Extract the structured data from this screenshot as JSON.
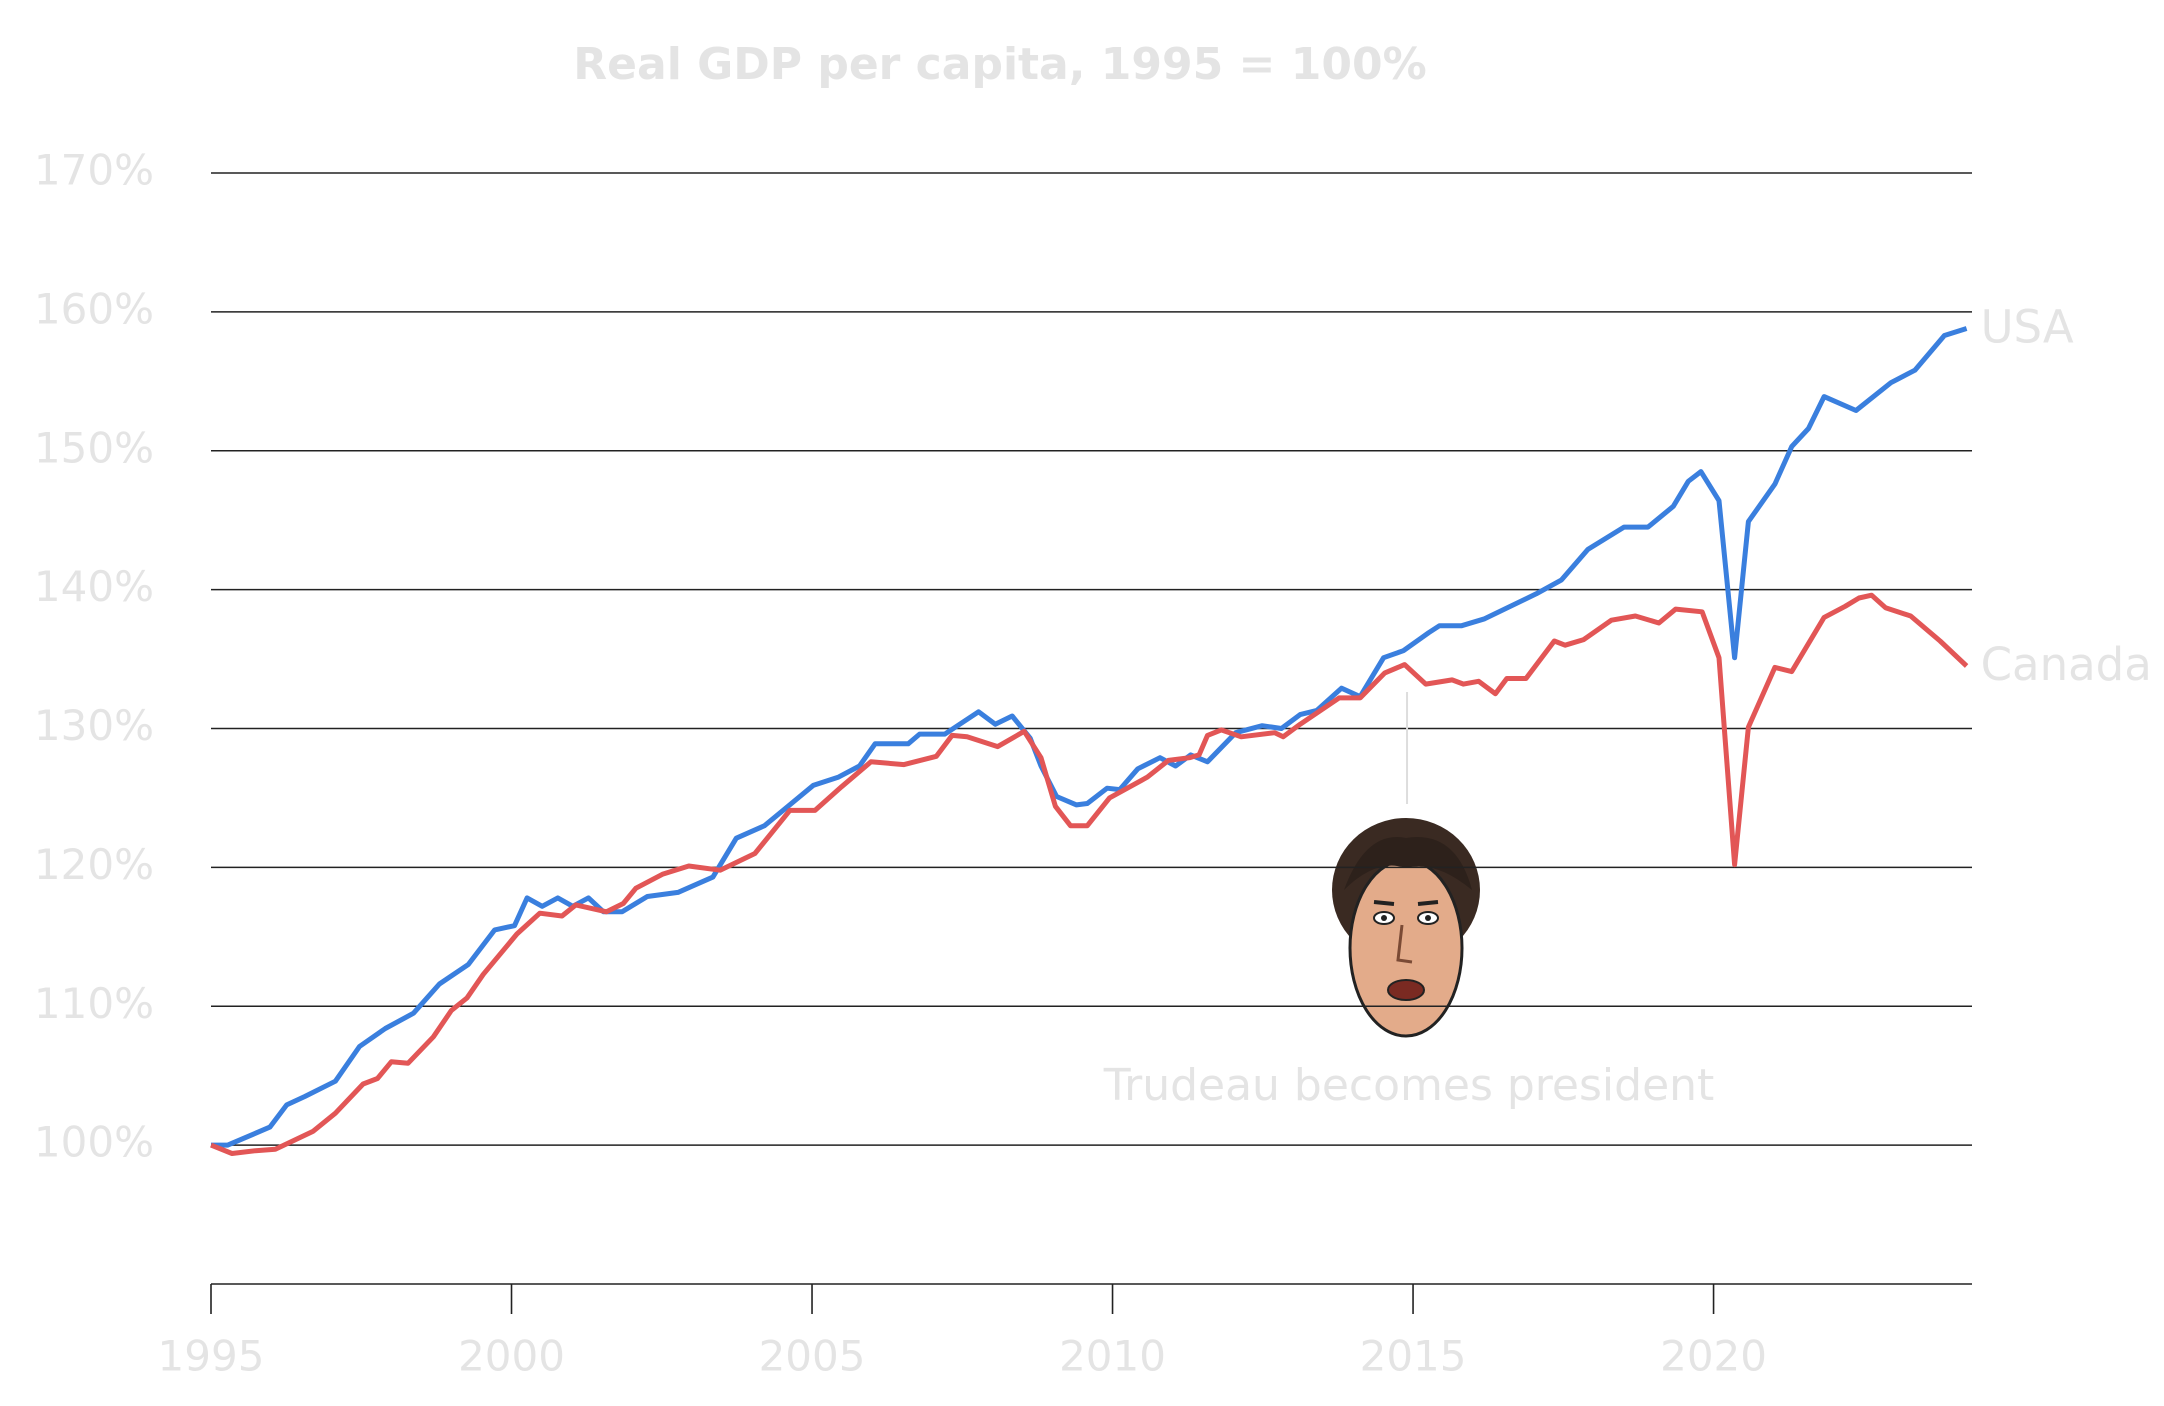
{
  "chart_data": {
    "type": "line",
    "title": "Real GDP per capita, 1995 = 100%",
    "xlim": [
      1995,
      2024.3
    ],
    "xticks": [
      1995,
      2000,
      2005,
      2010,
      2015,
      2020
    ],
    "ylim": [
      90,
      170
    ],
    "yticks": [
      {
        "value": 100,
        "label": "100%"
      },
      {
        "value": 110,
        "label": "110%"
      },
      {
        "value": 120,
        "label": "120%"
      },
      {
        "value": 130,
        "label": "130%"
      },
      {
        "value": 140,
        "label": "140%"
      },
      {
        "value": 150,
        "label": "150%"
      },
      {
        "value": 160,
        "label": "160%"
      },
      {
        "value": 170,
        "label": "170%"
      }
    ],
    "grid": true,
    "annotation": {
      "text": "Trudeau becomes president",
      "x": 2014.9
    },
    "series": [
      {
        "name": "USA",
        "color": "#3a7fde",
        "x": [
          1995,
          1995.28,
          1995.98,
          1996.26,
          1996.56,
          1997.07,
          1997.47,
          1997.9,
          1998.37,
          1998.8,
          1999.28,
          1999.72,
          2000.05,
          2000.26,
          2000.51,
          2000.77,
          2001.02,
          2001.28,
          2001.53,
          2001.84,
          2002.26,
          2002.77,
          2003.35,
          2003.74,
          2004.21,
          2004.6,
          2005.02,
          2005.44,
          2005.79,
          2006.05,
          2006.6,
          2006.79,
          2007.21,
          2007.77,
          2008.05,
          2008.33,
          2008.63,
          2008.81,
          2009.07,
          2009.4,
          2009.58,
          2009.91,
          2010.12,
          2010.42,
          2010.79,
          2011.05,
          2011.3,
          2011.58,
          2012.05,
          2012.49,
          2012.81,
          2013.12,
          2013.4,
          2013.81,
          2014.12,
          2014.51,
          2014.84,
          2015.26,
          2015.44,
          2015.81,
          2016.19,
          2017.05,
          2017.47,
          2017.91,
          2018.51,
          2018.91,
          2019.33,
          2019.58,
          2019.79,
          2020.09,
          2020.35,
          2020.58,
          2021.02,
          2021.3,
          2021.58,
          2021.84,
          2022.37,
          2022.95,
          2023.35,
          2023.84,
          2024.21
        ],
        "values": [
          100,
          100,
          101.3,
          102.9,
          103.5,
          104.6,
          107.1,
          108.4,
          109.5,
          111.6,
          113,
          115.5,
          115.8,
          117.8,
          117.2,
          117.8,
          117.2,
          117.8,
          116.8,
          116.8,
          117.9,
          118.2,
          119.3,
          122.1,
          123,
          124.4,
          125.9,
          126.5,
          127.3,
          128.9,
          128.9,
          129.6,
          129.6,
          131.2,
          130.3,
          130.9,
          129.3,
          127.3,
          125.1,
          124.5,
          124.6,
          125.7,
          125.6,
          127.1,
          127.9,
          127.3,
          128.1,
          127.6,
          129.7,
          130.2,
          130,
          131,
          131.3,
          132.9,
          132.3,
          135.1,
          135.6,
          136.9,
          137.4,
          137.4,
          137.9,
          139.7,
          140.7,
          142.9,
          144.5,
          144.5,
          146,
          147.8,
          148.5,
          146.4,
          135.1,
          144.9,
          147.6,
          150.3,
          151.6,
          153.9,
          152.9,
          154.9,
          155.8,
          158.3,
          158.8
        ]
      },
      {
        "name": "Canada",
        "color": "#e25656",
        "x": [
          1995,
          1995.35,
          1995.74,
          1996.07,
          1996.7,
          1997.07,
          1997.53,
          1997.77,
          1998,
          1998.28,
          1998.7,
          1999,
          1999.26,
          1999.53,
          2000.09,
          2000.47,
          2000.84,
          2001.07,
          2001.58,
          2001.86,
          2002.07,
          2002.51,
          2002.95,
          2003.47,
          2004.05,
          2004.63,
          2005.05,
          2005.49,
          2005.98,
          2006.53,
          2007.07,
          2007.33,
          2007.58,
          2008.09,
          2008.53,
          2008.81,
          2009.05,
          2009.3,
          2009.58,
          2009.95,
          2010.58,
          2010.93,
          2011.28,
          2011.44,
          2011.58,
          2011.81,
          2012.14,
          2012.7,
          2012.84,
          2013.12,
          2013.77,
          2014.12,
          2014.53,
          2014.86,
          2015.21,
          2015.65,
          2015.84,
          2016.09,
          2016.37,
          2016.56,
          2016.88,
          2017.35,
          2017.53,
          2017.84,
          2018.3,
          2018.7,
          2019.09,
          2019.37,
          2019.81,
          2020.09,
          2020.35,
          2020.58,
          2021.02,
          2021.3,
          2021.84,
          2022.19,
          2022.42,
          2022.63,
          2022.86,
          2023.28,
          2023.77,
          2024.21
        ],
        "values": [
          100,
          99.4,
          99.6,
          99.7,
          101,
          102.3,
          104.4,
          104.8,
          106,
          105.9,
          107.8,
          109.7,
          110.6,
          112.3,
          115.2,
          116.7,
          116.5,
          117.3,
          116.8,
          117.4,
          118.5,
          119.5,
          120.1,
          119.8,
          121,
          124.1,
          124.1,
          125.8,
          127.6,
          127.4,
          128,
          129.5,
          129.4,
          128.7,
          129.8,
          127.9,
          124.4,
          123,
          123,
          125,
          126.5,
          127.7,
          127.9,
          128.1,
          129.5,
          129.9,
          129.4,
          129.7,
          129.4,
          130.3,
          132.2,
          132.2,
          134,
          134.6,
          133.2,
          133.5,
          133.2,
          133.4,
          132.5,
          133.6,
          133.6,
          136.3,
          136,
          136.4,
          137.8,
          138.1,
          137.6,
          138.6,
          138.4,
          135.1,
          120.2,
          130.1,
          134.4,
          134.1,
          138,
          138.8,
          139.4,
          139.6,
          138.7,
          138.1,
          136.3,
          134.5
        ]
      }
    ]
  }
}
